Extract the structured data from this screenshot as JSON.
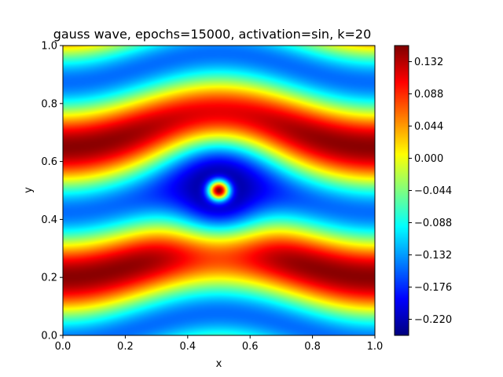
{
  "chart_data": {
    "type": "heatmap",
    "title": "gauss wave, epochs=15000, activation=sin, k=20",
    "xlabel": "x",
    "ylabel": "y",
    "xlim": [
      0.0,
      1.0
    ],
    "ylim": [
      0.0,
      1.0
    ],
    "xticks": [
      "0.0",
      "0.2",
      "0.4",
      "0.6",
      "0.8",
      "1.0"
    ],
    "yticks": [
      "0.0",
      "0.2",
      "0.4",
      "0.6",
      "0.8",
      "1.0"
    ],
    "colormap": "jet",
    "colorbar": {
      "range": [
        -0.242,
        0.154
      ],
      "ticks": [
        {
          "value": 0.132,
          "label": "0.132"
        },
        {
          "value": 0.088,
          "label": "0.088"
        },
        {
          "value": 0.044,
          "label": "0.044"
        },
        {
          "value": 0.0,
          "label": "0.000"
        },
        {
          "value": -0.044,
          "label": "−0.044"
        },
        {
          "value": -0.088,
          "label": "−0.088"
        },
        {
          "value": -0.132,
          "label": "−0.132"
        },
        {
          "value": -0.176,
          "label": "−0.176"
        },
        {
          "value": -0.22,
          "label": "−0.220"
        }
      ]
    },
    "field": {
      "description_of_structure": "horizontal wavy bands (red/cyan) around a central Gaussian source at (0.5, 0.5)",
      "source_center": [
        0.5,
        0.5
      ],
      "center_value": 0.154,
      "ring_min_value": -0.242,
      "band_amplitude": 0.15
    }
  }
}
